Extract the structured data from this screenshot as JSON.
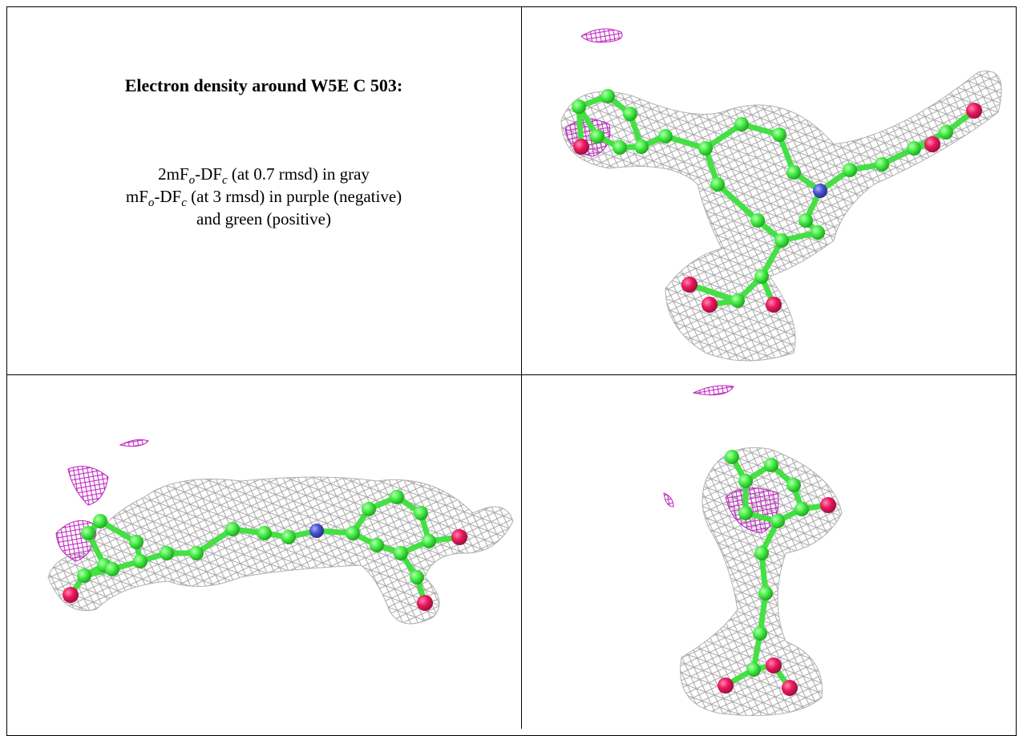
{
  "caption": {
    "title": "Electron density around W5E C 503:",
    "line1": [
      "2mF",
      "o",
      "-DF",
      "c",
      " (at 0.7 rmsd) in gray"
    ],
    "line2": [
      "mF",
      "o",
      "-DF",
      "c",
      " (at 3 rmsd) in purple (negative)"
    ],
    "line3": "and green (positive)"
  }
}
